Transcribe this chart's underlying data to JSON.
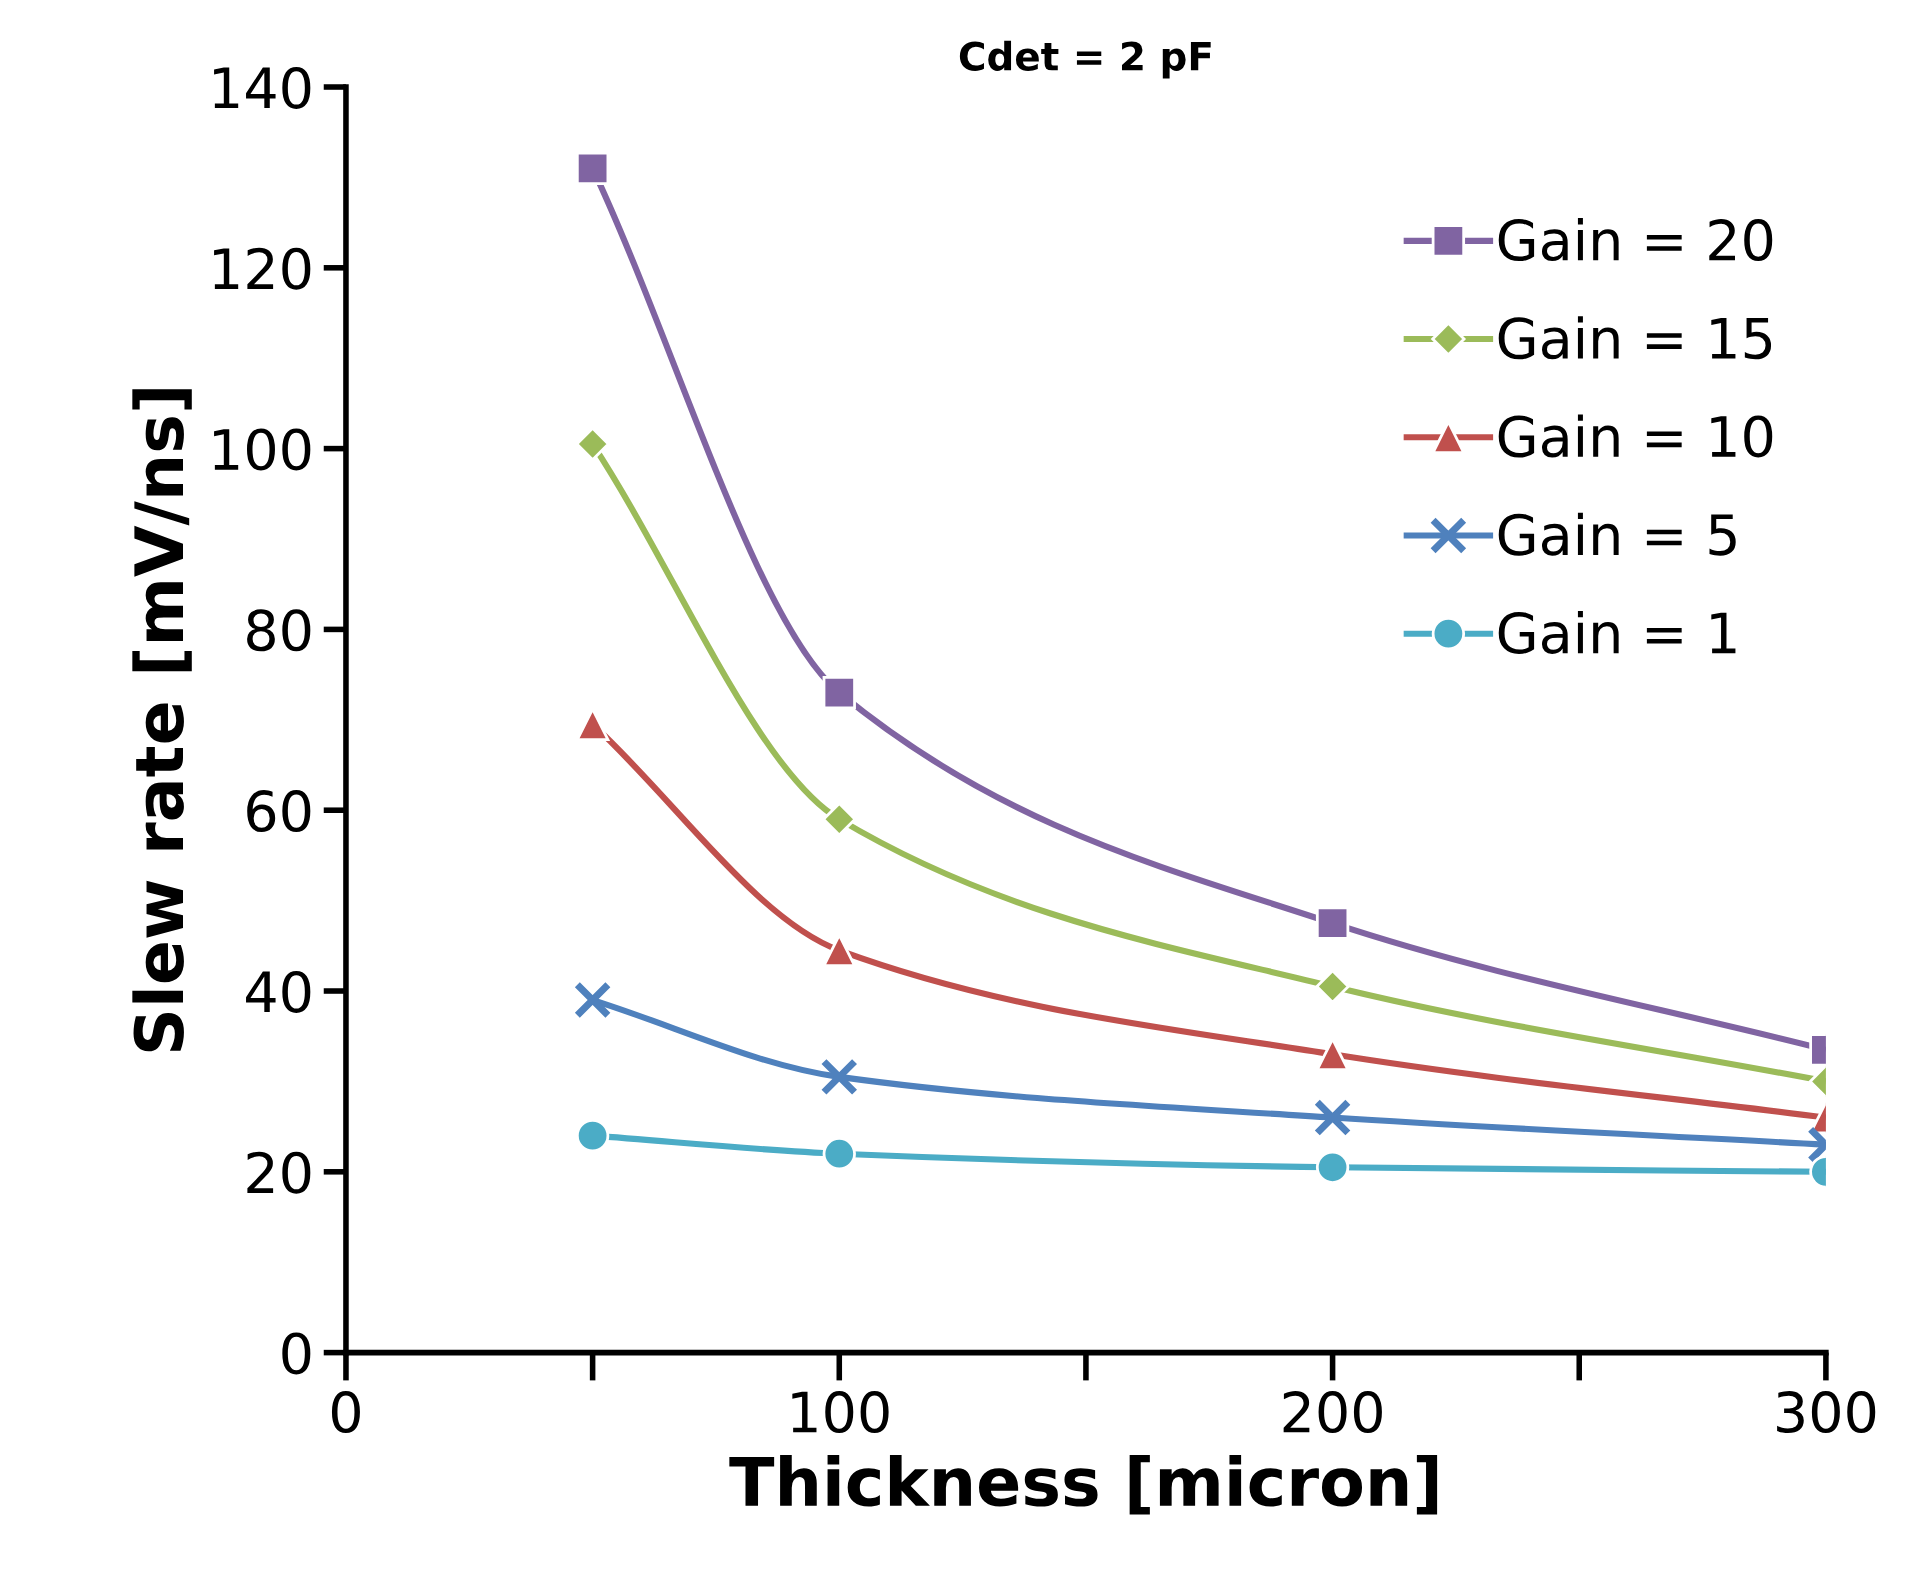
{
  "chart_data": {
    "type": "line",
    "title": "Cdet = 2 pF",
    "xlabel": "Thickness [micron]",
    "ylabel": "Slew rate [mV/ns]",
    "x": [
      50,
      100,
      200,
      300
    ],
    "xlim": [
      0,
      300
    ],
    "xticks": [
      0,
      {
        "value": 50,
        "label": null
      },
      100,
      {
        "value": 150,
        "label": null
      },
      200,
      {
        "value": 250,
        "label": null
      },
      300
    ],
    "ylim": [
      0,
      140
    ],
    "yticks": [
      0,
      20,
      40,
      60,
      80,
      100,
      120,
      140
    ],
    "grid": false,
    "legend": "right",
    "line_style": "solid",
    "series": [
      {
        "name": "Gain = 20",
        "color": "#8064a2",
        "marker": "square",
        "values": [
          131,
          73,
          47.5,
          33.5
        ]
      },
      {
        "name": "Gain = 15",
        "color": "#9bbb59",
        "marker": "diamond",
        "values": [
          100.5,
          59,
          40.5,
          30
        ]
      },
      {
        "name": "Gain = 10",
        "color": "#c0504d",
        "marker": "triangle",
        "values": [
          69.5,
          44.5,
          33,
          26
        ]
      },
      {
        "name": "Gain = 5",
        "color": "#4f81bd",
        "marker": "cross",
        "values": [
          39,
          30.5,
          26,
          23
        ]
      },
      {
        "name": "Gain = 1",
        "color": "#4bacc6",
        "marker": "circle",
        "values": [
          24,
          22,
          20.5,
          20
        ]
      }
    ]
  }
}
